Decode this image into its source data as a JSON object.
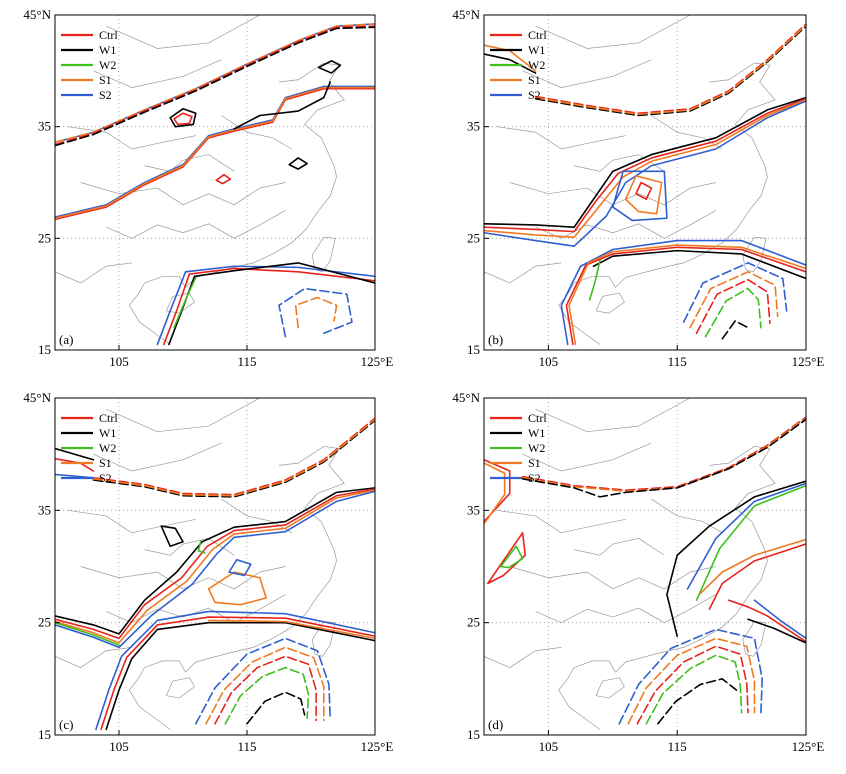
{
  "figure_panels": [
    "(a)",
    "(b)",
    "(c)",
    "(d)"
  ],
  "colors": {
    "Ctrl": "#e8231b",
    "W1": "#000000",
    "W2": "#3fbf1d",
    "S1": "#f07a22",
    "S2": "#2f5fd0",
    "map_lines": "#9a9a9a",
    "grid": "#9a9a9a"
  },
  "chart_data": [
    {
      "type": "map-contour",
      "panel_label": "(a)",
      "legend": [
        "Ctrl",
        "W1",
        "W2",
        "S1",
        "S2"
      ],
      "xlim": [
        100,
        125
      ],
      "ylim": [
        15,
        45
      ],
      "x_ticks": [
        105,
        115,
        125
      ],
      "y_ticks": [
        15,
        25,
        35,
        45
      ],
      "x_tick_labels": [
        "105",
        "115",
        "125°E"
      ],
      "y_tick_labels": [
        "15",
        "25",
        "35",
        "45°N"
      ],
      "grid": "dotted"
    },
    {
      "type": "map-contour",
      "panel_label": "(b)",
      "legend": [
        "Ctrl",
        "W1",
        "W2",
        "S1",
        "S2"
      ],
      "xlim": [
        100,
        125
      ],
      "ylim": [
        15,
        45
      ],
      "x_ticks": [
        105,
        115,
        125
      ],
      "y_ticks": [
        15,
        25,
        35,
        45
      ],
      "x_tick_labels": [
        "105",
        "115",
        "125°E"
      ],
      "y_tick_labels": [
        "15",
        "25",
        "35",
        "45°N"
      ],
      "grid": "dotted"
    },
    {
      "type": "map-contour",
      "panel_label": "(c)",
      "legend": [
        "Ctrl",
        "W1",
        "W2",
        "S1",
        "S2"
      ],
      "xlim": [
        100,
        125
      ],
      "ylim": [
        15,
        45
      ],
      "x_ticks": [
        105,
        115,
        125
      ],
      "y_ticks": [
        15,
        25,
        35,
        45
      ],
      "x_tick_labels": [
        "105",
        "115",
        "125°E"
      ],
      "y_tick_labels": [
        "15",
        "25",
        "35",
        "45°N"
      ],
      "grid": "dotted"
    },
    {
      "type": "map-contour",
      "panel_label": "(d)",
      "legend": [
        "Ctrl",
        "W1",
        "W2",
        "S1",
        "S2"
      ],
      "xlim": [
        100,
        125
      ],
      "ylim": [
        15,
        45
      ],
      "x_ticks": [
        105,
        115,
        125
      ],
      "y_ticks": [
        15,
        25,
        35,
        45
      ],
      "x_tick_labels": [
        "105",
        "115",
        "125°E"
      ],
      "y_tick_labels": [
        "15",
        "25",
        "35",
        "45°N"
      ],
      "grid": "dotted"
    }
  ]
}
